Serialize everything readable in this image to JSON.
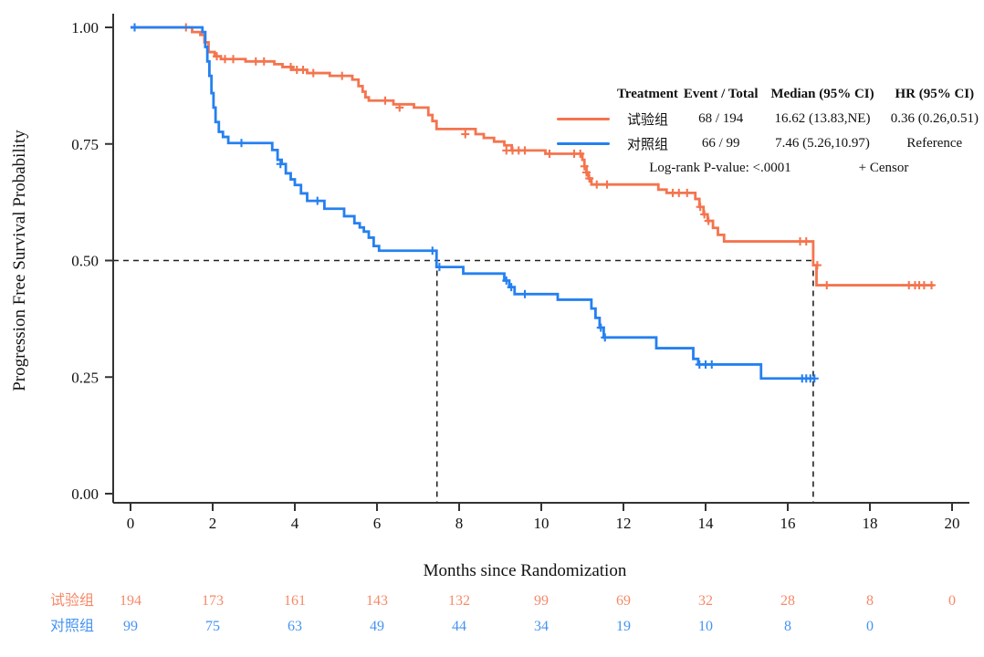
{
  "accent_colors": {
    "treatment": "#F4744E",
    "control": "#2580F0",
    "axis": "#333333",
    "reference": "#222222"
  },
  "legend": {
    "headers": [
      "Treatment",
      "Event / Total",
      "Median (95% CI)",
      "HR (95% CI)"
    ],
    "rows": [
      {
        "treatment": "试验组",
        "event_total": "68 / 194",
        "median": "16.62 (13.83,NE)",
        "hr": "0.36 (0.26,0.51)"
      },
      {
        "treatment": "对照组",
        "event_total": "66 / 99",
        "median": "7.46 (5.26,10.97)",
        "hr": "Reference"
      }
    ],
    "footer": "Log-rank P-value: <.0001",
    "censor_note": "+ Censor"
  },
  "chart_data": {
    "type": "line",
    "subtype": "kaplan-meier-step",
    "title": "",
    "xlabel": "Months since Randomization",
    "ylabel": "Progression Free Survival Probability",
    "xlim": [
      0,
      20
    ],
    "ylim": [
      0,
      1
    ],
    "grid": false,
    "legend_position": "top-right",
    "xticks": {
      "values": [
        0,
        2,
        4,
        6,
        8,
        10,
        12,
        14,
        16,
        18,
        20
      ],
      "labels": [
        "0",
        "2",
        "4",
        "6",
        "8",
        "10",
        "12",
        "14",
        "16",
        "18",
        "20"
      ]
    },
    "yticks": {
      "values": [
        0,
        0.25,
        0.5,
        0.75,
        1.0
      ],
      "labels": [
        "0.00",
        "0.25",
        "0.50",
        "0.75",
        "1.00"
      ]
    },
    "reference_lines": {
      "h_at": 0.5,
      "h_from_x": 0,
      "h_to_x": 16.62,
      "v_at": [
        7.46,
        16.62
      ]
    },
    "series": [
      {
        "name": "试验组",
        "color": "#F4744E",
        "end_time": 19.55,
        "steps": [
          [
            0,
            1.0
          ],
          [
            1.5,
            0.99
          ],
          [
            1.7,
            0.984
          ],
          [
            1.8,
            0.968
          ],
          [
            1.9,
            0.947
          ],
          [
            2.05,
            0.938
          ],
          [
            2.2,
            0.932
          ],
          [
            2.8,
            0.927
          ],
          [
            3.5,
            0.921
          ],
          [
            3.7,
            0.915
          ],
          [
            3.95,
            0.909
          ],
          [
            4.3,
            0.902
          ],
          [
            4.85,
            0.896
          ],
          [
            5.4,
            0.888
          ],
          [
            5.55,
            0.874
          ],
          [
            5.65,
            0.862
          ],
          [
            5.72,
            0.85
          ],
          [
            5.8,
            0.843
          ],
          [
            6.4,
            0.835
          ],
          [
            6.9,
            0.828
          ],
          [
            7.25,
            0.812
          ],
          [
            7.35,
            0.799
          ],
          [
            7.45,
            0.782
          ],
          [
            8.4,
            0.771
          ],
          [
            8.6,
            0.763
          ],
          [
            8.85,
            0.755
          ],
          [
            9.1,
            0.747
          ],
          [
            9.28,
            0.736
          ],
          [
            10.1,
            0.729
          ],
          [
            11.0,
            0.716
          ],
          [
            11.05,
            0.702
          ],
          [
            11.1,
            0.689
          ],
          [
            11.15,
            0.676
          ],
          [
            11.22,
            0.663
          ],
          [
            12.85,
            0.652
          ],
          [
            13.05,
            0.645
          ],
          [
            13.75,
            0.632
          ],
          [
            13.85,
            0.615
          ],
          [
            13.95,
            0.599
          ],
          [
            14.05,
            0.585
          ],
          [
            14.18,
            0.57
          ],
          [
            14.3,
            0.555
          ],
          [
            14.45,
            0.541
          ],
          [
            16.62,
            0.49
          ],
          [
            16.7,
            0.447
          ]
        ],
        "censors": [
          [
            1.35,
            1.0
          ],
          [
            2.1,
            0.938
          ],
          [
            2.3,
            0.932
          ],
          [
            2.5,
            0.932
          ],
          [
            3.05,
            0.927
          ],
          [
            3.25,
            0.927
          ],
          [
            3.9,
            0.915
          ],
          [
            4.05,
            0.909
          ],
          [
            4.2,
            0.909
          ],
          [
            4.45,
            0.902
          ],
          [
            5.15,
            0.896
          ],
          [
            6.2,
            0.843
          ],
          [
            6.55,
            0.828
          ],
          [
            8.15,
            0.771
          ],
          [
            9.15,
            0.736
          ],
          [
            9.3,
            0.736
          ],
          [
            9.45,
            0.736
          ],
          [
            9.6,
            0.736
          ],
          [
            10.2,
            0.729
          ],
          [
            10.8,
            0.729
          ],
          [
            10.95,
            0.729
          ],
          [
            11.05,
            0.702
          ],
          [
            11.1,
            0.689
          ],
          [
            11.17,
            0.676
          ],
          [
            11.35,
            0.663
          ],
          [
            11.6,
            0.663
          ],
          [
            13.2,
            0.645
          ],
          [
            13.35,
            0.645
          ],
          [
            13.55,
            0.645
          ],
          [
            13.87,
            0.615
          ],
          [
            13.97,
            0.599
          ],
          [
            14.07,
            0.585
          ],
          [
            16.3,
            0.541
          ],
          [
            16.45,
            0.541
          ],
          [
            16.72,
            0.49
          ],
          [
            16.95,
            0.447
          ],
          [
            18.95,
            0.447
          ],
          [
            19.1,
            0.447
          ],
          [
            19.2,
            0.447
          ],
          [
            19.32,
            0.447
          ],
          [
            19.5,
            0.447
          ]
        ]
      },
      {
        "name": "对照组",
        "color": "#2580F0",
        "end_time": 16.65,
        "steps": [
          [
            0,
            1.0
          ],
          [
            1.75,
            0.99
          ],
          [
            1.82,
            0.958
          ],
          [
            1.87,
            0.927
          ],
          [
            1.92,
            0.896
          ],
          [
            1.97,
            0.859
          ],
          [
            2.02,
            0.828
          ],
          [
            2.07,
            0.797
          ],
          [
            2.15,
            0.776
          ],
          [
            2.25,
            0.765
          ],
          [
            2.38,
            0.752
          ],
          [
            3.45,
            0.737
          ],
          [
            3.58,
            0.716
          ],
          [
            3.68,
            0.707
          ],
          [
            3.78,
            0.687
          ],
          [
            3.9,
            0.674
          ],
          [
            4.0,
            0.662
          ],
          [
            4.15,
            0.644
          ],
          [
            4.3,
            0.628
          ],
          [
            4.72,
            0.611
          ],
          [
            5.2,
            0.595
          ],
          [
            5.45,
            0.58
          ],
          [
            5.58,
            0.571
          ],
          [
            5.68,
            0.562
          ],
          [
            5.8,
            0.549
          ],
          [
            5.92,
            0.531
          ],
          [
            6.05,
            0.521
          ],
          [
            7.45,
            0.486
          ],
          [
            8.1,
            0.472
          ],
          [
            9.1,
            0.457
          ],
          [
            9.22,
            0.443
          ],
          [
            9.35,
            0.428
          ],
          [
            10.4,
            0.416
          ],
          [
            11.22,
            0.397
          ],
          [
            11.32,
            0.377
          ],
          [
            11.42,
            0.356
          ],
          [
            11.52,
            0.335
          ],
          [
            12.8,
            0.312
          ],
          [
            13.7,
            0.289
          ],
          [
            13.82,
            0.277
          ],
          [
            15.35,
            0.247
          ]
        ],
        "censors": [
          [
            0.1,
            1.0
          ],
          [
            2.7,
            0.752
          ],
          [
            3.65,
            0.707
          ],
          [
            4.55,
            0.628
          ],
          [
            7.35,
            0.521
          ],
          [
            7.52,
            0.486
          ],
          [
            9.15,
            0.457
          ],
          [
            9.27,
            0.443
          ],
          [
            9.6,
            0.428
          ],
          [
            11.45,
            0.356
          ],
          [
            11.55,
            0.335
          ],
          [
            13.85,
            0.277
          ],
          [
            14.0,
            0.277
          ],
          [
            14.15,
            0.277
          ],
          [
            16.35,
            0.247
          ],
          [
            16.45,
            0.247
          ],
          [
            16.55,
            0.247
          ],
          [
            16.65,
            0.247
          ]
        ]
      }
    ],
    "risk_table": {
      "times": [
        0,
        2,
        4,
        6,
        8,
        10,
        12,
        14,
        16,
        18,
        20
      ],
      "rows": [
        {
          "name": "试验组",
          "color": "#F4744E",
          "counts": [
            194,
            173,
            161,
            143,
            132,
            99,
            69,
            32,
            28,
            8,
            0
          ]
        },
        {
          "name": "对照组",
          "color": "#2580F0",
          "counts": [
            99,
            75,
            63,
            49,
            44,
            34,
            19,
            10,
            8,
            0,
            null
          ]
        }
      ]
    }
  }
}
